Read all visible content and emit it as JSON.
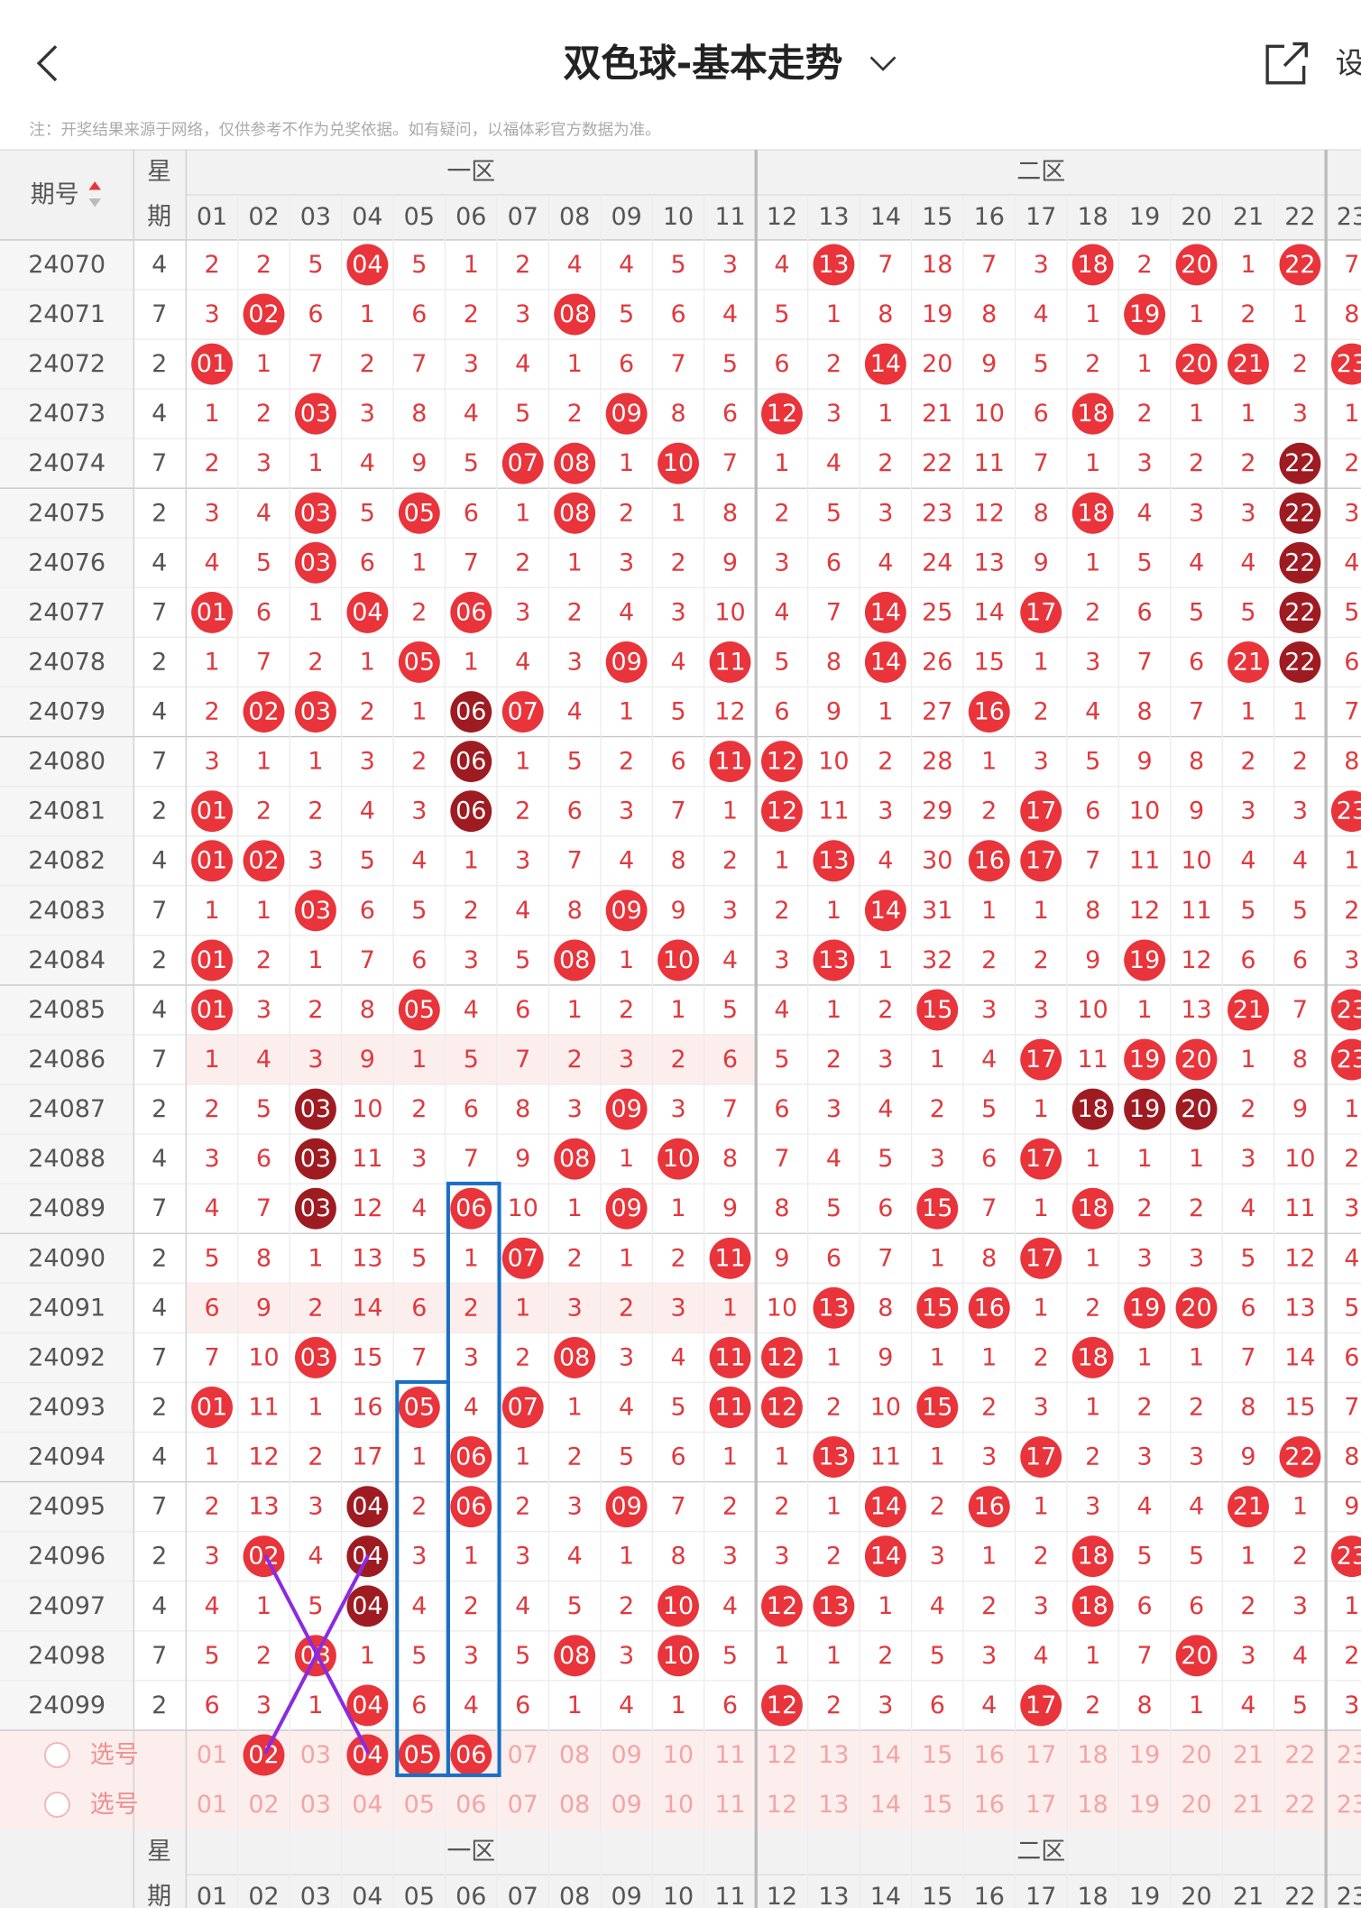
{
  "header": {
    "title": "双色球-基本走势",
    "settings": "设"
  },
  "notice": "注：开奖结果来源于网络，仅供参考不作为兑奖依据。如有疑问，以福体彩官方数据为准。",
  "table": {
    "period_header": "期号",
    "weekday_header": [
      "星",
      "期"
    ],
    "zones": [
      "一区",
      "二区"
    ],
    "columns": [
      "01",
      "02",
      "03",
      "04",
      "05",
      "06",
      "07",
      "08",
      "09",
      "10",
      "11",
      "12",
      "13",
      "14",
      "15",
      "16",
      "17",
      "18",
      "19",
      "20",
      "21",
      "22",
      "23"
    ],
    "rows": [
      {
        "period": "24070",
        "weekday": "4",
        "cells": [
          "2",
          "2",
          "5",
          "04",
          "5",
          "1",
          "2",
          "4",
          "4",
          "5",
          "3",
          "4",
          "13",
          "7",
          "18",
          "7",
          "3",
          "18",
          "2",
          "20",
          "1",
          "22",
          "7"
        ],
        "dark": []
      },
      {
        "period": "24071",
        "weekday": "7",
        "cells": [
          "3",
          "02",
          "6",
          "1",
          "6",
          "2",
          "3",
          "08",
          "5",
          "6",
          "4",
          "5",
          "1",
          "8",
          "19",
          "8",
          "4",
          "1",
          "19",
          "1",
          "2",
          "1",
          "8"
        ],
        "dark": []
      },
      {
        "period": "24072",
        "weekday": "2",
        "cells": [
          "01",
          "1",
          "7",
          "2",
          "7",
          "3",
          "4",
          "1",
          "6",
          "7",
          "5",
          "6",
          "2",
          "14",
          "20",
          "9",
          "5",
          "2",
          "1",
          "20",
          "21",
          "2",
          "23"
        ],
        "dark": []
      },
      {
        "period": "24073",
        "weekday": "4",
        "cells": [
          "1",
          "2",
          "03",
          "3",
          "8",
          "4",
          "5",
          "2",
          "09",
          "8",
          "6",
          "12",
          "3",
          "1",
          "21",
          "10",
          "6",
          "18",
          "2",
          "1",
          "1",
          "3",
          "1"
        ],
        "dark": []
      },
      {
        "period": "24074",
        "weekday": "7",
        "cells": [
          "2",
          "3",
          "1",
          "4",
          "9",
          "5",
          "07",
          "08",
          "1",
          "10",
          "7",
          "1",
          "4",
          "2",
          "22",
          "11",
          "7",
          "1",
          "3",
          "2",
          "2",
          "22",
          "2"
        ],
        "dark": [
          "22"
        ]
      },
      {
        "period": "24075",
        "weekday": "2",
        "cells": [
          "3",
          "4",
          "03",
          "5",
          "05",
          "6",
          "1",
          "08",
          "2",
          "1",
          "8",
          "2",
          "5",
          "3",
          "23",
          "12",
          "8",
          "18",
          "4",
          "3",
          "3",
          "22",
          "3"
        ],
        "dark": [
          "22"
        ]
      },
      {
        "period": "24076",
        "weekday": "4",
        "cells": [
          "4",
          "5",
          "03",
          "6",
          "1",
          "7",
          "2",
          "1",
          "3",
          "2",
          "9",
          "3",
          "6",
          "4",
          "24",
          "13",
          "9",
          "1",
          "5",
          "4",
          "4",
          "22",
          "4"
        ],
        "dark": [
          "22"
        ]
      },
      {
        "period": "24077",
        "weekday": "7",
        "cells": [
          "01",
          "6",
          "1",
          "04",
          "2",
          "06",
          "3",
          "2",
          "4",
          "3",
          "10",
          "4",
          "7",
          "14",
          "25",
          "14",
          "17",
          "2",
          "6",
          "5",
          "5",
          "22",
          "5"
        ],
        "dark": [
          "22"
        ]
      },
      {
        "period": "24078",
        "weekday": "2",
        "cells": [
          "1",
          "7",
          "2",
          "1",
          "05",
          "1",
          "4",
          "3",
          "09",
          "4",
          "11",
          "5",
          "8",
          "14",
          "26",
          "15",
          "1",
          "3",
          "7",
          "6",
          "21",
          "22",
          "6"
        ],
        "dark": [
          "22"
        ]
      },
      {
        "period": "24079",
        "weekday": "4",
        "cells": [
          "2",
          "02",
          "03",
          "2",
          "1",
          "06",
          "07",
          "4",
          "1",
          "5",
          "12",
          "6",
          "9",
          "1",
          "27",
          "16",
          "2",
          "4",
          "8",
          "7",
          "1",
          "1",
          "7"
        ],
        "dark": [
          "06"
        ]
      },
      {
        "period": "24080",
        "weekday": "7",
        "cells": [
          "3",
          "1",
          "1",
          "3",
          "2",
          "06",
          "1",
          "5",
          "2",
          "6",
          "11",
          "12",
          "10",
          "2",
          "28",
          "1",
          "3",
          "5",
          "9",
          "8",
          "2",
          "2",
          "8"
        ],
        "dark": [
          "06"
        ]
      },
      {
        "period": "24081",
        "weekday": "2",
        "cells": [
          "01",
          "2",
          "2",
          "4",
          "3",
          "06",
          "2",
          "6",
          "3",
          "7",
          "1",
          "12",
          "11",
          "3",
          "29",
          "2",
          "17",
          "6",
          "10",
          "9",
          "3",
          "3",
          "23"
        ],
        "dark": [
          "06"
        ]
      },
      {
        "period": "24082",
        "weekday": "4",
        "cells": [
          "01",
          "02",
          "3",
          "5",
          "4",
          "1",
          "3",
          "7",
          "4",
          "8",
          "2",
          "1",
          "13",
          "4",
          "30",
          "16",
          "17",
          "7",
          "11",
          "10",
          "4",
          "4",
          "1"
        ],
        "dark": []
      },
      {
        "period": "24083",
        "weekday": "7",
        "cells": [
          "1",
          "1",
          "03",
          "6",
          "5",
          "2",
          "4",
          "8",
          "09",
          "9",
          "3",
          "2",
          "1",
          "14",
          "31",
          "1",
          "1",
          "8",
          "12",
          "11",
          "5",
          "5",
          "2"
        ],
        "dark": []
      },
      {
        "period": "24084",
        "weekday": "2",
        "cells": [
          "01",
          "2",
          "1",
          "7",
          "6",
          "3",
          "5",
          "08",
          "1",
          "10",
          "4",
          "3",
          "13",
          "1",
          "32",
          "2",
          "2",
          "9",
          "19",
          "12",
          "6",
          "6",
          "3"
        ],
        "dark": []
      },
      {
        "period": "24085",
        "weekday": "4",
        "cells": [
          "01",
          "3",
          "2",
          "8",
          "05",
          "4",
          "6",
          "1",
          "2",
          "1",
          "5",
          "4",
          "1",
          "2",
          "15",
          "3",
          "3",
          "10",
          "1",
          "13",
          "21",
          "7",
          "23"
        ],
        "dark": []
      },
      {
        "period": "24086",
        "weekday": "7",
        "cells": [
          "1",
          "4",
          "3",
          "9",
          "1",
          "5",
          "7",
          "2",
          "3",
          "2",
          "6",
          "5",
          "2",
          "3",
          "1",
          "4",
          "17",
          "11",
          "19",
          "20",
          "1",
          "8",
          "23"
        ],
        "dark": [],
        "highlight": true
      },
      {
        "period": "24087",
        "weekday": "2",
        "cells": [
          "2",
          "5",
          "03",
          "10",
          "2",
          "6",
          "8",
          "3",
          "09",
          "3",
          "7",
          "6",
          "3",
          "4",
          "2",
          "5",
          "1",
          "18",
          "19",
          "20",
          "2",
          "9",
          "1"
        ],
        "dark": [
          "03",
          "18",
          "19",
          "20"
        ]
      },
      {
        "period": "24088",
        "weekday": "4",
        "cells": [
          "3",
          "6",
          "03",
          "11",
          "3",
          "7",
          "9",
          "08",
          "1",
          "10",
          "8",
          "7",
          "4",
          "5",
          "3",
          "6",
          "17",
          "1",
          "1",
          "1",
          "3",
          "10",
          "2"
        ],
        "dark": [
          "03"
        ]
      },
      {
        "period": "24089",
        "weekday": "7",
        "cells": [
          "4",
          "7",
          "03",
          "12",
          "4",
          "06",
          "10",
          "1",
          "09",
          "1",
          "9",
          "8",
          "5",
          "6",
          "15",
          "7",
          "1",
          "18",
          "2",
          "2",
          "4",
          "11",
          "3"
        ],
        "dark": [
          "03"
        ]
      },
      {
        "period": "24090",
        "weekday": "2",
        "cells": [
          "5",
          "8",
          "1",
          "13",
          "5",
          "1",
          "07",
          "2",
          "1",
          "2",
          "11",
          "9",
          "6",
          "7",
          "1",
          "8",
          "17",
          "1",
          "3",
          "3",
          "5",
          "12",
          "4"
        ],
        "dark": []
      },
      {
        "period": "24091",
        "weekday": "4",
        "cells": [
          "6",
          "9",
          "2",
          "14",
          "6",
          "2",
          "1",
          "3",
          "2",
          "3",
          "1",
          "10",
          "13",
          "8",
          "15",
          "16",
          "1",
          "2",
          "19",
          "20",
          "6",
          "13",
          "5"
        ],
        "dark": [],
        "highlight": true
      },
      {
        "period": "24092",
        "weekday": "7",
        "cells": [
          "7",
          "10",
          "03",
          "15",
          "7",
          "3",
          "2",
          "08",
          "3",
          "4",
          "11",
          "12",
          "1",
          "9",
          "1",
          "1",
          "2",
          "18",
          "1",
          "1",
          "7",
          "14",
          "6"
        ],
        "dark": []
      },
      {
        "period": "24093",
        "weekday": "2",
        "cells": [
          "01",
          "11",
          "1",
          "16",
          "05",
          "4",
          "07",
          "1",
          "4",
          "5",
          "11",
          "12",
          "2",
          "10",
          "15",
          "2",
          "3",
          "1",
          "2",
          "2",
          "8",
          "15",
          "7"
        ],
        "dark": []
      },
      {
        "period": "24094",
        "weekday": "4",
        "cells": [
          "1",
          "12",
          "2",
          "17",
          "1",
          "06",
          "1",
          "2",
          "5",
          "6",
          "1",
          "1",
          "13",
          "11",
          "1",
          "3",
          "17",
          "2",
          "3",
          "3",
          "9",
          "22",
          "8"
        ],
        "dark": []
      },
      {
        "period": "24095",
        "weekday": "7",
        "cells": [
          "2",
          "13",
          "3",
          "04",
          "2",
          "06",
          "2",
          "3",
          "09",
          "7",
          "2",
          "2",
          "1",
          "14",
          "2",
          "16",
          "1",
          "3",
          "4",
          "4",
          "21",
          "1",
          "9"
        ],
        "dark": [
          "04"
        ]
      },
      {
        "period": "24096",
        "weekday": "2",
        "cells": [
          "3",
          "02",
          "4",
          "04",
          "3",
          "1",
          "3",
          "4",
          "1",
          "8",
          "3",
          "3",
          "2",
          "14",
          "3",
          "1",
          "2",
          "18",
          "5",
          "5",
          "1",
          "2",
          "23"
        ],
        "dark": [
          "04"
        ]
      },
      {
        "period": "24097",
        "weekday": "4",
        "cells": [
          "4",
          "1",
          "5",
          "04",
          "4",
          "2",
          "4",
          "5",
          "2",
          "10",
          "4",
          "12",
          "13",
          "1",
          "4",
          "2",
          "3",
          "18",
          "6",
          "6",
          "2",
          "3",
          "1"
        ],
        "dark": [
          "04"
        ]
      },
      {
        "period": "24098",
        "weekday": "7",
        "cells": [
          "5",
          "2",
          "03",
          "1",
          "5",
          "3",
          "5",
          "08",
          "3",
          "10",
          "5",
          "1",
          "1",
          "2",
          "5",
          "3",
          "4",
          "1",
          "7",
          "20",
          "3",
          "4",
          "2"
        ],
        "dark": []
      },
      {
        "period": "24099",
        "weekday": "2",
        "cells": [
          "6",
          "3",
          "1",
          "04",
          "6",
          "4",
          "6",
          "1",
          "4",
          "1",
          "6",
          "12",
          "2",
          "3",
          "6",
          "4",
          "17",
          "2",
          "8",
          "1",
          "4",
          "5",
          "3"
        ],
        "dark": []
      }
    ],
    "selection": [
      {
        "label": "选号",
        "picked": [
          "02",
          "04",
          "05",
          "06"
        ]
      },
      {
        "label": "选号",
        "picked": []
      }
    ],
    "footer_label": "-"
  }
}
